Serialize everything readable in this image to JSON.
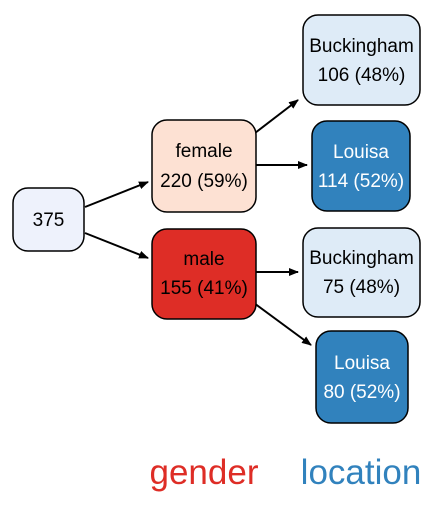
{
  "tree": {
    "root": {
      "count": "375",
      "color": "#eef2fc"
    },
    "nodes": [
      {
        "id": "female",
        "level": "gender",
        "label": "female",
        "value": "220 (59%)",
        "fill": "#fde1d3",
        "text_color": "#000000"
      },
      {
        "id": "male",
        "level": "gender",
        "label": "male",
        "value": "155 (41%)",
        "fill": "#de2d26",
        "text_color": "#000000"
      },
      {
        "id": "female-buckingham",
        "level": "location",
        "parent": "female",
        "label": "Buckingham",
        "value": "106 (48%)",
        "fill": "#deebf7",
        "text_color": "#000000"
      },
      {
        "id": "female-louisa",
        "level": "location",
        "parent": "female",
        "label": "Louisa",
        "value": "114 (52%)",
        "fill": "#3182bd",
        "text_color": "#ffffff"
      },
      {
        "id": "male-buckingham",
        "level": "location",
        "parent": "male",
        "label": "Buckingham",
        "value": "75 (48%)",
        "fill": "#deebf7",
        "text_color": "#000000"
      },
      {
        "id": "male-louisa",
        "level": "location",
        "parent": "male",
        "label": "Louisa",
        "value": "80 (52%)",
        "fill": "#3182bd",
        "text_color": "#ffffff"
      }
    ]
  },
  "levels": {
    "gender": {
      "label": "gender",
      "color": "#de2d26"
    },
    "location": {
      "label": "location",
      "color": "#3182bd"
    }
  }
}
